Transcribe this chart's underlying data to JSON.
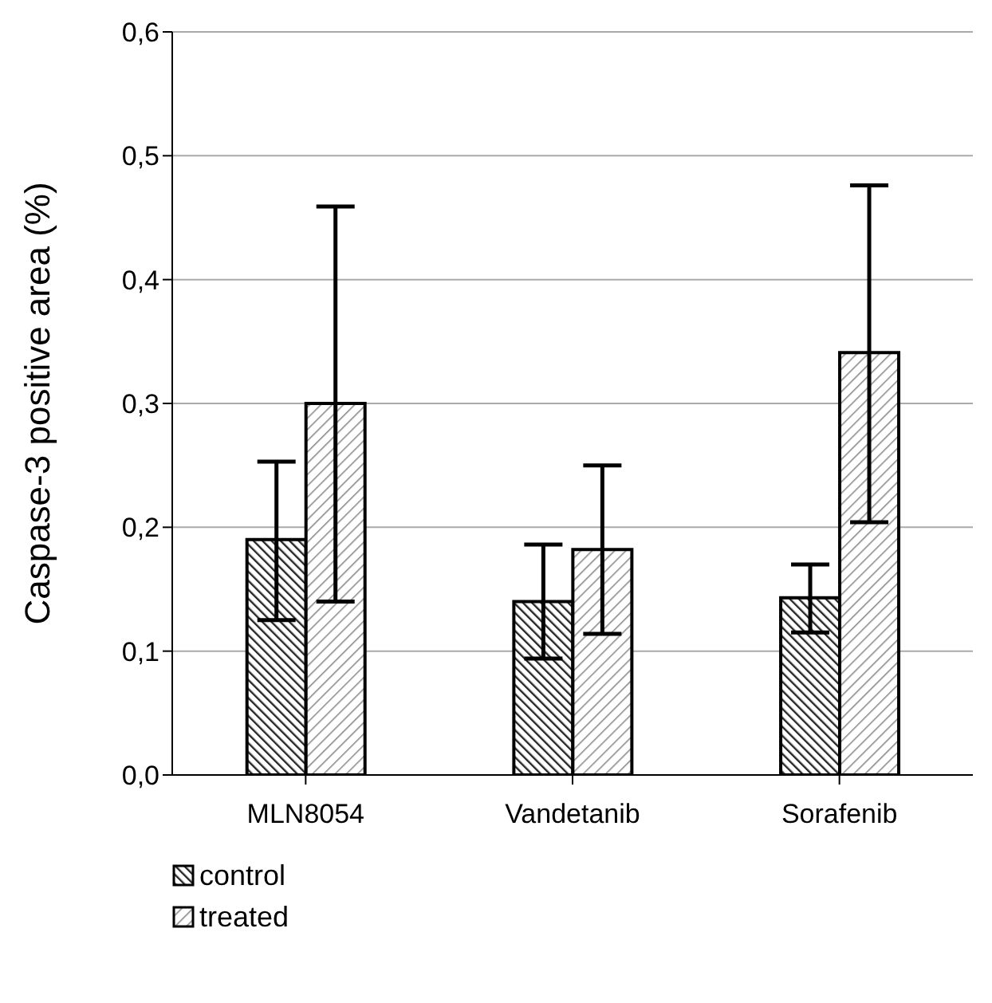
{
  "chart_data": {
    "type": "bar",
    "ylabel": "Caspase-3 positive area (%)",
    "categories": [
      "MLN8054",
      "Vandetanib",
      "Sorafenib"
    ],
    "series": [
      {
        "name": "control",
        "color": "#000000",
        "values": [
          0.19,
          0.14,
          0.143
        ],
        "errors": [
          [
            0.125,
            0.253
          ],
          [
            0.094,
            0.186
          ],
          [
            0.115,
            0.17
          ]
        ]
      },
      {
        "name": "treated",
        "color": "#000000",
        "values": [
          0.3,
          0.182,
          0.341
        ],
        "errors": [
          [
            0.14,
            0.459
          ],
          [
            0.114,
            0.25
          ],
          [
            0.204,
            0.476
          ]
        ]
      }
    ],
    "ylim": [
      0,
      0.6
    ],
    "yticks": [
      {
        "value": 0,
        "label": "0,0"
      },
      {
        "value": 0.1,
        "label": "0,1"
      },
      {
        "value": 0.2,
        "label": "0,2"
      },
      {
        "value": 0.3,
        "label": "0,3"
      },
      {
        "value": 0.4,
        "label": "0,4"
      },
      {
        "value": 0.5,
        "label": "0,5"
      },
      {
        "value": 0.6,
        "label": "0,6"
      }
    ],
    "grid": "y",
    "legend": "bottom left"
  }
}
